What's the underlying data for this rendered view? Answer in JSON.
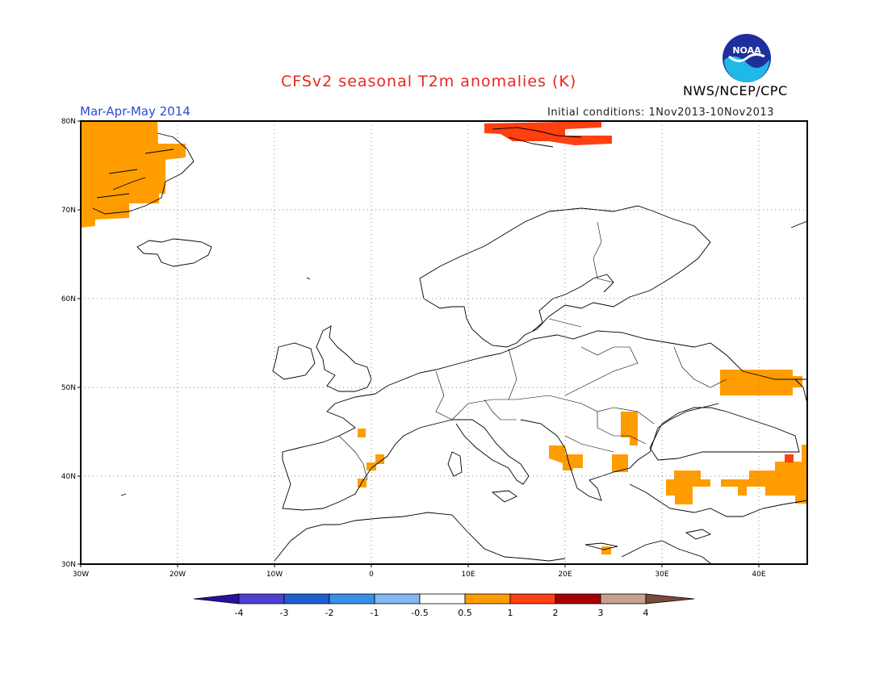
{
  "header": {
    "title": "CFSv2 seasonal T2m anomalies (K)",
    "agency": "NWS/NCEP/CPC",
    "season": "Mar-Apr-May 2014",
    "initial_conditions": "Initial conditions: 1Nov2013-10Nov2013",
    "logo_text": "NOAA"
  },
  "map": {
    "lon_range": [
      -30,
      45
    ],
    "lat_range": [
      30,
      80
    ],
    "lat_labels": [
      "80N",
      "70N",
      "60N",
      "50N",
      "40N",
      "30N"
    ],
    "lon_labels": [
      "30W",
      "20W",
      "10W",
      "0",
      "10E",
      "20E",
      "30E",
      "40E"
    ],
    "grid": true
  },
  "colorbar": {
    "labels": [
      "-4",
      "-3",
      "-2",
      "-1",
      "-0.5",
      "0.5",
      "1",
      "2",
      "3",
      "4"
    ],
    "colors": [
      "#2a0fa0",
      "#4f3fd0",
      "#1f5fd0",
      "#3a90e8",
      "#80b8f0",
      "#ffffff",
      "#ff9d00",
      "#ff4010",
      "#a80000",
      "#c8a090",
      "#7a4a3a"
    ]
  },
  "anomaly_colors": {
    "warm1": "#ff9d00",
    "warm2": "#ff4010"
  }
}
